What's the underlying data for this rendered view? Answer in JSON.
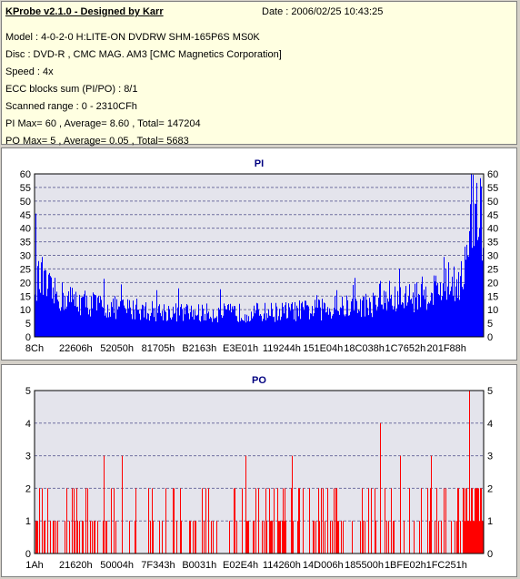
{
  "info": {
    "title": "KProbe v2.1.0 - Designed by Karr",
    "date": "Date : 2006/02/25 10:43:25",
    "lines": [
      "Model : 4-0-2-0 H:LITE-ON DVDRW SHM-165P6S MS0K",
      "Disc : DVD-R , CMC MAG. AM3 [CMC Magnetics Corporation]",
      "Speed : 4x",
      "ECC blocks sum (PI/PO) : 8/1",
      "Scanned range : 0 - 2310CFh",
      "PI Max= 60 , Average= 8.60 , Total= 147204",
      "PO Max= 5 , Average= 0.05 , Total= 5683"
    ]
  },
  "chart_data": [
    {
      "type": "bar",
      "title": "PI",
      "ylim": [
        0,
        60
      ],
      "yticks": [
        0,
        5,
        10,
        15,
        20,
        25,
        30,
        35,
        40,
        45,
        50,
        55,
        60
      ],
      "xticks": [
        "8Ch",
        "22606h",
        "52050h",
        "81705h",
        "B2163h",
        "E3E01h",
        "119244h",
        "151E04h",
        "18C038h",
        "1C7652h",
        "201F88h"
      ],
      "grid": true,
      "color": "#0000ff",
      "profile": [
        [
          0,
          25
        ],
        [
          0.01,
          22
        ],
        [
          0.04,
          17
        ],
        [
          0.08,
          15
        ],
        [
          0.15,
          12
        ],
        [
          0.25,
          10.5
        ],
        [
          0.35,
          9.5
        ],
        [
          0.45,
          9.5
        ],
        [
          0.55,
          10
        ],
        [
          0.65,
          11
        ],
        [
          0.75,
          13
        ],
        [
          0.82,
          15
        ],
        [
          0.88,
          18
        ],
        [
          0.92,
          21
        ],
        [
          0.95,
          24
        ],
        [
          0.965,
          30
        ],
        [
          0.975,
          45
        ],
        [
          0.985,
          52
        ],
        [
          0.995,
          46
        ],
        [
          1,
          42
        ]
      ],
      "max": 60
    },
    {
      "type": "bar",
      "title": "PO",
      "ylim": [
        0,
        5
      ],
      "yticks": [
        0,
        1,
        2,
        3,
        4,
        5
      ],
      "xticks": [
        "1Ah",
        "21620h",
        "50004h",
        "7F343h",
        "B0031h",
        "E02E4h",
        "114260h",
        "14D006h",
        "185500h",
        "1BFE02h",
        "1FC251h"
      ],
      "grid": true,
      "color": "#ff0000",
      "peaks": [
        [
          0.155,
          3
        ],
        [
          0.195,
          3
        ],
        [
          0.47,
          3
        ],
        [
          0.575,
          3
        ],
        [
          0.77,
          4
        ],
        [
          0.815,
          3
        ],
        [
          0.885,
          3
        ],
        [
          0.97,
          5
        ]
      ],
      "max": 5
    }
  ]
}
